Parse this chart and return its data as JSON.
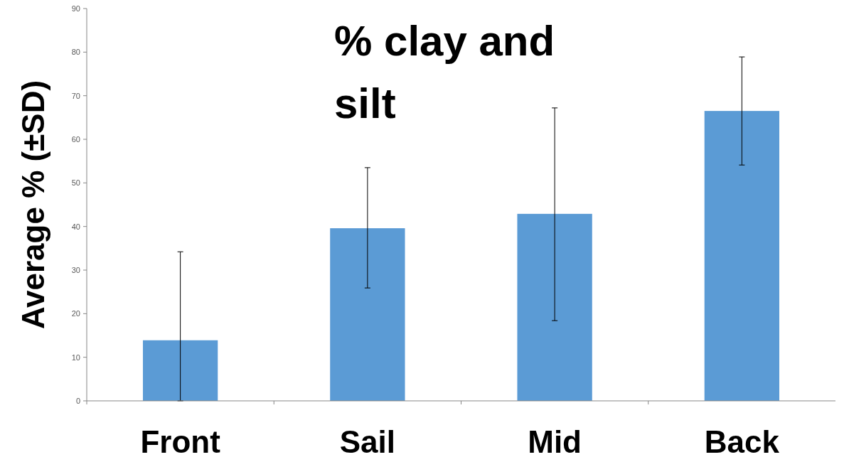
{
  "chart_data": {
    "type": "bar",
    "title": "% clay and silt",
    "ylabel": "Average % (±SD)",
    "categories": [
      "Front",
      "Sail",
      "Mid",
      "Back"
    ],
    "values": [
      13.9,
      39.6,
      42.9,
      66.5
    ],
    "errors": [
      [
        0,
        34.2
      ],
      [
        25.9,
        53.5
      ],
      [
        18.4,
        67.2
      ],
      [
        54.1,
        78.9
      ]
    ],
    "color": "#5b9bd5",
    "ylim": [
      0,
      90
    ],
    "yticks": [
      0,
      10,
      20,
      30,
      40,
      50,
      60,
      70,
      80,
      90
    ],
    "grid": false
  }
}
